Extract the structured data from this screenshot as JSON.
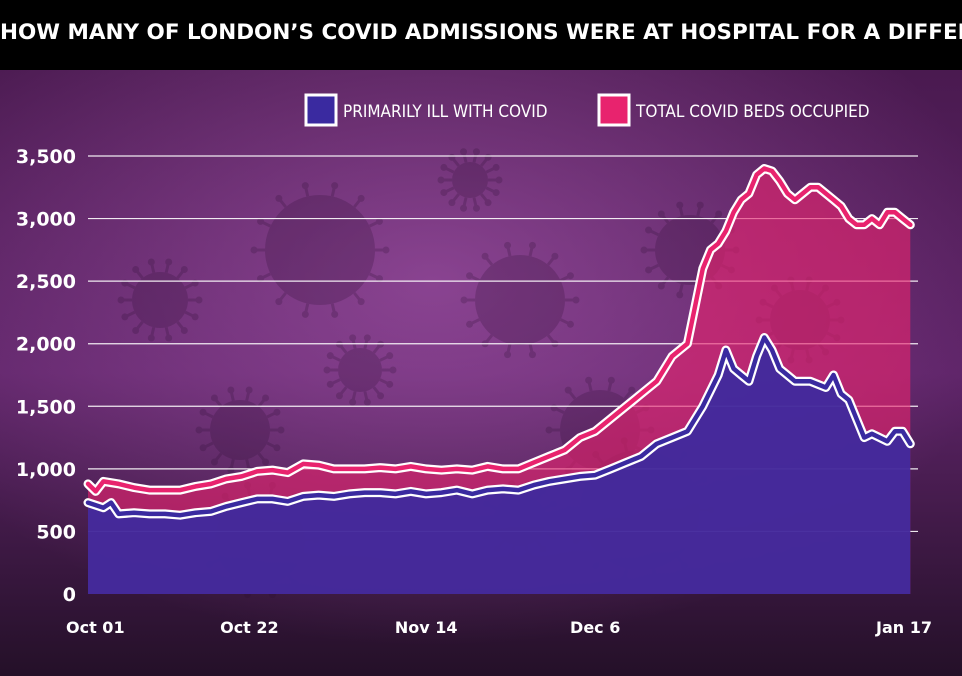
{
  "title": "HOW MANY OF LONDON’S COVID ADMISSIONS WERE AT HOSPITAL FOR A DIFFERENT REASON?",
  "colors": {
    "total": "#e8236e",
    "primary": "#3a2aa0",
    "background_top": "#5a1f5e",
    "background_bottom": "#2a0e30"
  },
  "chart_data": {
    "type": "area",
    "title": "HOW MANY OF LONDON’S COVID ADMISSIONS WERE AT HOSPITAL FOR A DIFFERENT REASON?",
    "xlabel": "",
    "ylabel": "",
    "ylim": [
      0,
      3500
    ],
    "yticks": [
      "3,500",
      "3,000",
      "2,500",
      "2,000",
      "1,500",
      "1,000",
      "500",
      "0"
    ],
    "ytick_values": [
      3500,
      3000,
      2500,
      2000,
      1500,
      1000,
      500,
      0
    ],
    "xticks": [
      "Oct 01",
      "Oct 22",
      "Nov 14",
      "Dec 6",
      "Jan 17"
    ],
    "xtick_days": [
      0,
      21,
      44,
      66,
      108
    ],
    "grid": true,
    "legend_position": "top-right",
    "series": [
      {
        "name": "PRIMARILY ILL WITH COVID",
        "color": "#3a2aa0",
        "values": [
          [
            0,
            730
          ],
          [
            2,
            690
          ],
          [
            3,
            730
          ],
          [
            4,
            640
          ],
          [
            6,
            650
          ],
          [
            8,
            640
          ],
          [
            10,
            640
          ],
          [
            12,
            630
          ],
          [
            14,
            650
          ],
          [
            16,
            660
          ],
          [
            18,
            700
          ],
          [
            20,
            730
          ],
          [
            22,
            760
          ],
          [
            24,
            760
          ],
          [
            26,
            740
          ],
          [
            28,
            780
          ],
          [
            30,
            790
          ],
          [
            32,
            780
          ],
          [
            34,
            800
          ],
          [
            36,
            810
          ],
          [
            38,
            810
          ],
          [
            40,
            800
          ],
          [
            42,
            820
          ],
          [
            44,
            800
          ],
          [
            46,
            810
          ],
          [
            48,
            830
          ],
          [
            50,
            800
          ],
          [
            52,
            830
          ],
          [
            54,
            840
          ],
          [
            56,
            830
          ],
          [
            58,
            870
          ],
          [
            60,
            900
          ],
          [
            62,
            920
          ],
          [
            64,
            940
          ],
          [
            66,
            950
          ],
          [
            68,
            1000
          ],
          [
            70,
            1050
          ],
          [
            72,
            1100
          ],
          [
            74,
            1200
          ],
          [
            76,
            1250
          ],
          [
            78,
            1300
          ],
          [
            80,
            1500
          ],
          [
            82,
            1750
          ],
          [
            83,
            1950
          ],
          [
            84,
            1800
          ],
          [
            85,
            1750
          ],
          [
            86,
            1700
          ],
          [
            87,
            1900
          ],
          [
            88,
            2050
          ],
          [
            89,
            1950
          ],
          [
            90,
            1800
          ],
          [
            91,
            1750
          ],
          [
            92,
            1700
          ],
          [
            94,
            1700
          ],
          [
            96,
            1650
          ],
          [
            97,
            1750
          ],
          [
            98,
            1600
          ],
          [
            99,
            1550
          ],
          [
            100,
            1400
          ],
          [
            101,
            1250
          ],
          [
            102,
            1280
          ],
          [
            104,
            1220
          ],
          [
            105,
            1300
          ],
          [
            106,
            1300
          ],
          [
            107,
            1200
          ]
        ]
      },
      {
        "name": "TOTAL COVID BEDS OCCUPIED",
        "color": "#e8236e",
        "values": [
          [
            0,
            880
          ],
          [
            1,
            820
          ],
          [
            2,
            900
          ],
          [
            4,
            880
          ],
          [
            6,
            850
          ],
          [
            8,
            830
          ],
          [
            10,
            830
          ],
          [
            12,
            830
          ],
          [
            14,
            860
          ],
          [
            16,
            880
          ],
          [
            18,
            920
          ],
          [
            20,
            940
          ],
          [
            22,
            980
          ],
          [
            24,
            990
          ],
          [
            26,
            970
          ],
          [
            28,
            1040
          ],
          [
            30,
            1030
          ],
          [
            32,
            1000
          ],
          [
            34,
            1000
          ],
          [
            36,
            1000
          ],
          [
            38,
            1010
          ],
          [
            40,
            1000
          ],
          [
            42,
            1020
          ],
          [
            44,
            1000
          ],
          [
            46,
            990
          ],
          [
            48,
            1000
          ],
          [
            50,
            990
          ],
          [
            52,
            1020
          ],
          [
            54,
            1000
          ],
          [
            56,
            1000
          ],
          [
            58,
            1050
          ],
          [
            60,
            1100
          ],
          [
            62,
            1150
          ],
          [
            64,
            1250
          ],
          [
            66,
            1300
          ],
          [
            68,
            1400
          ],
          [
            70,
            1500
          ],
          [
            72,
            1600
          ],
          [
            74,
            1700
          ],
          [
            76,
            1900
          ],
          [
            78,
            2000
          ],
          [
            79,
            2300
          ],
          [
            80,
            2600
          ],
          [
            81,
            2750
          ],
          [
            82,
            2800
          ],
          [
            83,
            2900
          ],
          [
            84,
            3050
          ],
          [
            85,
            3150
          ],
          [
            86,
            3200
          ],
          [
            87,
            3350
          ],
          [
            88,
            3400
          ],
          [
            89,
            3380
          ],
          [
            90,
            3300
          ],
          [
            91,
            3200
          ],
          [
            92,
            3150
          ],
          [
            93,
            3200
          ],
          [
            94,
            3250
          ],
          [
            95,
            3250
          ],
          [
            96,
            3200
          ],
          [
            97,
            3150
          ],
          [
            98,
            3100
          ],
          [
            99,
            3000
          ],
          [
            100,
            2950
          ],
          [
            101,
            2950
          ],
          [
            102,
            3000
          ],
          [
            103,
            2950
          ],
          [
            104,
            3050
          ],
          [
            105,
            3050
          ],
          [
            106,
            3000
          ],
          [
            107,
            2950
          ]
        ]
      }
    ]
  }
}
